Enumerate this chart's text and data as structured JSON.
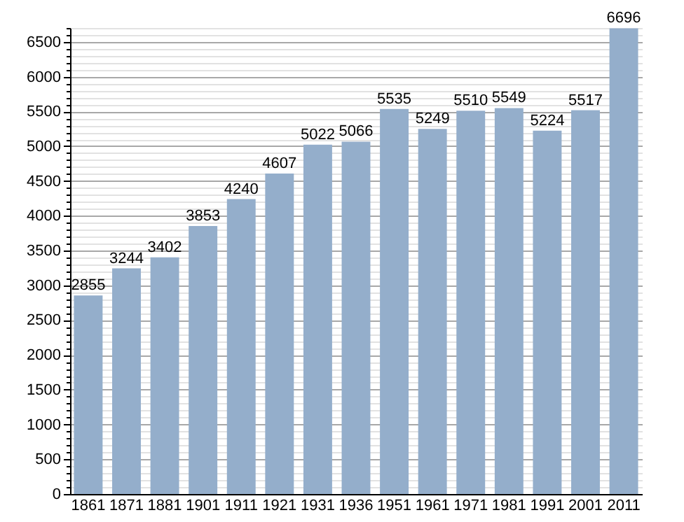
{
  "chart_data": {
    "type": "bar",
    "categories": [
      "1861",
      "1871",
      "1881",
      "1901",
      "1911",
      "1921",
      "1931",
      "1936",
      "1951",
      "1961",
      "1971",
      "1981",
      "1991",
      "2001",
      "2011"
    ],
    "values": [
      2855,
      3244,
      3402,
      3853,
      4240,
      4607,
      5022,
      5066,
      5535,
      5249,
      5510,
      5549,
      5224,
      5517,
      6696
    ],
    "color": "#94aecb",
    "data_labels": true,
    "grid": "y",
    "ylim": [
      0,
      6700
    ],
    "yticks": [
      0,
      {
        "value": 100,
        "label": null
      },
      {
        "value": 200,
        "label": null
      },
      {
        "value": 300,
        "label": null
      },
      {
        "value": 400,
        "label": null
      },
      500,
      {
        "value": 600,
        "label": null
      },
      {
        "value": 700,
        "label": null
      },
      {
        "value": 800,
        "label": null
      },
      {
        "value": 900,
        "label": null
      },
      1000,
      {
        "value": 1100,
        "label": null
      },
      {
        "value": 1200,
        "label": null
      },
      {
        "value": 1300,
        "label": null
      },
      {
        "value": 1400,
        "label": null
      },
      1500,
      {
        "value": 1600,
        "label": null
      },
      {
        "value": 1700,
        "label": null
      },
      {
        "value": 1800,
        "label": null
      },
      {
        "value": 1900,
        "label": null
      },
      2000,
      {
        "value": 2100,
        "label": null
      },
      {
        "value": 2200,
        "label": null
      },
      {
        "value": 2300,
        "label": null
      },
      {
        "value": 2400,
        "label": null
      },
      2500,
      {
        "value": 2600,
        "label": null
      },
      {
        "value": 2700,
        "label": null
      },
      {
        "value": 2800,
        "label": null
      },
      {
        "value": 2900,
        "label": null
      },
      3000,
      {
        "value": 3100,
        "label": null
      },
      {
        "value": 3200,
        "label": null
      },
      {
        "value": 3300,
        "label": null
      },
      {
        "value": 3400,
        "label": null
      },
      3500,
      {
        "value": 3600,
        "label": null
      },
      {
        "value": 3700,
        "label": null
      },
      {
        "value": 3800,
        "label": null
      },
      {
        "value": 3900,
        "label": null
      },
      4000,
      {
        "value": 4100,
        "label": null
      },
      {
        "value": 4200,
        "label": null
      },
      {
        "value": 4300,
        "label": null
      },
      {
        "value": 4400,
        "label": null
      },
      4500,
      {
        "value": 4600,
        "label": null
      },
      {
        "value": 4700,
        "label": null
      },
      {
        "value": 4800,
        "label": null
      },
      {
        "value": 4900,
        "label": null
      },
      5000,
      {
        "value": 5100,
        "label": null
      },
      {
        "value": 5200,
        "label": null
      },
      {
        "value": 5300,
        "label": null
      },
      {
        "value": 5400,
        "label": null
      },
      5500,
      {
        "value": 5600,
        "label": null
      },
      {
        "value": 5700,
        "label": null
      },
      {
        "value": 5800,
        "label": null
      },
      {
        "value": 5900,
        "label": null
      },
      6000,
      {
        "value": 6100,
        "label": null
      },
      {
        "value": 6200,
        "label": null
      },
      {
        "value": 6300,
        "label": null
      },
      {
        "value": 6400,
        "label": null
      },
      6500,
      {
        "value": 6600,
        "label": null
      },
      {
        "value": 6700,
        "label": null
      }
    ]
  }
}
